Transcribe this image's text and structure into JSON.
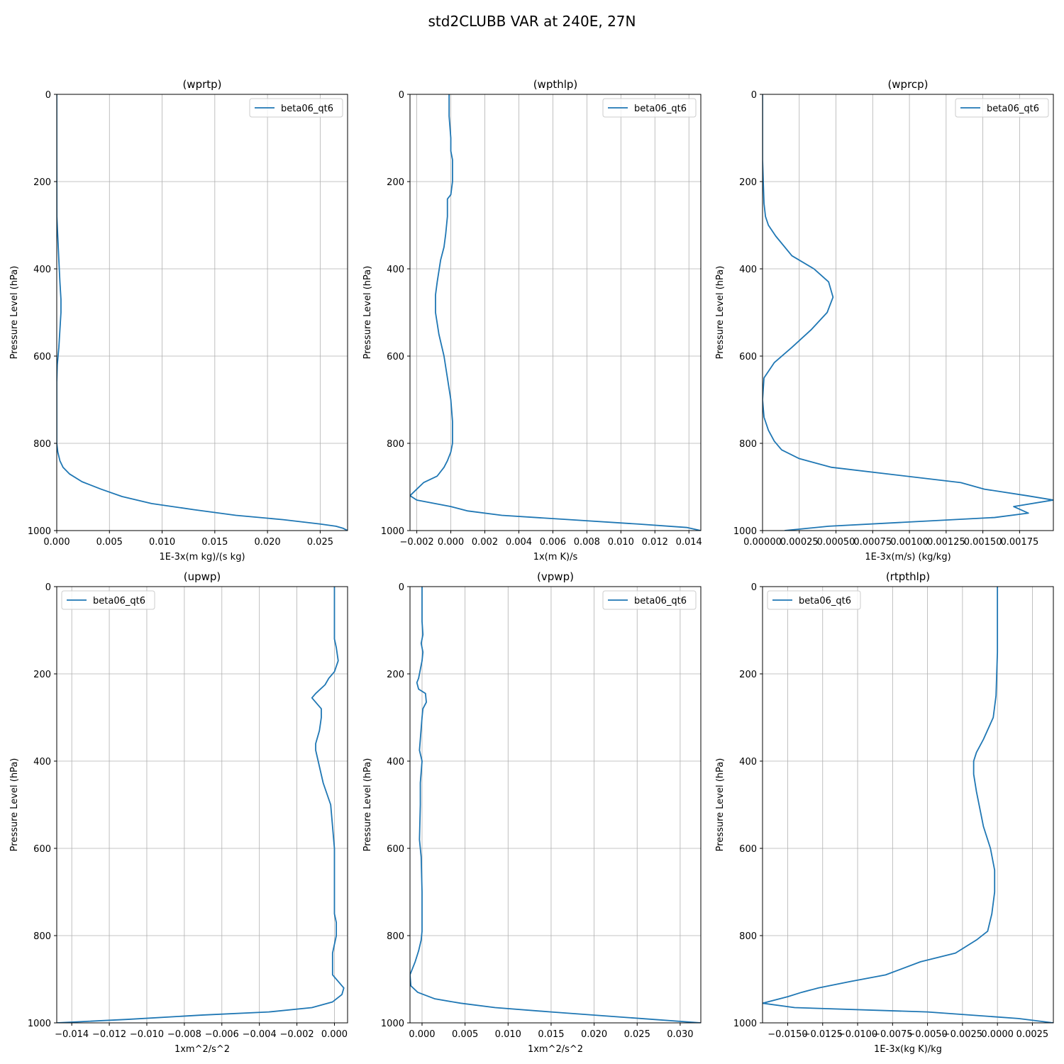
{
  "figure": {
    "title": "std2CLUBB VAR at 240E, 27N",
    "colors": {
      "series": "#1f77b4",
      "grid": "#b0b0b0",
      "frame": "#000000"
    }
  },
  "chart_data": [
    {
      "type": "line",
      "title": "(wprtp)",
      "xlabel": "1E-3x(m kg)/(s kg)",
      "ylabel": "Pressure Level (hPa)",
      "xlim": [
        0,
        0.0276
      ],
      "ylim": [
        1000,
        0
      ],
      "xticks": [
        0,
        0.005,
        0.01,
        0.015,
        0.02,
        0.025
      ],
      "xtick_labels": [
        "0.000",
        "0.005",
        "0.010",
        "0.015",
        "0.020",
        "0.025"
      ],
      "yticks": [
        0,
        200,
        400,
        600,
        800,
        1000
      ],
      "ytick_labels": [
        "0",
        "200",
        "400",
        "600",
        "800",
        "1000"
      ],
      "grid": true,
      "legend_loc": "upper-right",
      "series": [
        {
          "name": "beta06_qt6",
          "x": [
            0,
            0,
            1e-05,
            0.0002,
            0.0003,
            0.0004,
            0.0004,
            0.0003,
            0.0002,
            5e-05,
            0,
            0,
            0,
            0.0001,
            0.0003,
            0.0006,
            0.0012,
            0.0024,
            0.0042,
            0.0062,
            0.009,
            0.013,
            0.017,
            0.0215,
            0.025,
            0.0265,
            0.0272,
            0.0276
          ],
          "y": [
            0,
            150,
            280,
            380,
            430,
            470,
            500,
            540,
            580,
            620,
            660,
            760,
            800,
            820,
            840,
            855,
            870,
            888,
            905,
            922,
            938,
            952,
            965,
            975,
            985,
            990,
            995,
            1000
          ]
        }
      ]
    },
    {
      "type": "line",
      "title": "(wpthlp)",
      "xlabel": "1x(m K)/s",
      "ylabel": "Pressure Level (hPa)",
      "xlim": [
        -0.0024,
        0.0147
      ],
      "ylim": [
        1000,
        0
      ],
      "xticks": [
        -0.002,
        0,
        0.002,
        0.004,
        0.006,
        0.008,
        0.01,
        0.012,
        0.014
      ],
      "xtick_labels": [
        "−0.002",
        "0.000",
        "0.002",
        "0.004",
        "0.006",
        "0.008",
        "0.010",
        "0.012",
        "0.014"
      ],
      "yticks": [
        0,
        200,
        400,
        600,
        800,
        1000
      ],
      "ytick_labels": [
        "0",
        "200",
        "400",
        "600",
        "800",
        "1000"
      ],
      "grid": true,
      "legend_loc": "upper-right",
      "series": [
        {
          "name": "beta06_qt6",
          "x": [
            -0.0001,
            -0.0001,
            0.0,
            0.0,
            0.0001,
            0.0001,
            0.0,
            -0.0002,
            -0.0002,
            -0.0003,
            -0.0004,
            -0.0006,
            -0.0008,
            -0.0009,
            -0.0009,
            -0.0007,
            -0.0004,
            -0.0002,
            0.0,
            0.0001,
            0.0001,
            0.0001,
            0.0,
            -0.0002,
            -0.0004,
            -0.0008,
            -0.0016,
            -0.002,
            -0.0024,
            -0.002,
            0.0,
            0.001,
            0.003,
            0.007,
            0.011,
            0.0139,
            0.0147
          ],
          "y": [
            0,
            50,
            100,
            130,
            150,
            200,
            230,
            240,
            280,
            320,
            350,
            380,
            430,
            460,
            500,
            550,
            600,
            650,
            700,
            750,
            780,
            800,
            820,
            840,
            855,
            875,
            890,
            905,
            920,
            930,
            945,
            955,
            965,
            975,
            985,
            993,
            1000
          ]
        }
      ]
    },
    {
      "type": "line",
      "title": "(wprcp)",
      "xlabel": "1E-3x(m/s) (kg/kg)",
      "ylabel": "Pressure Level (hPa)",
      "xlim": [
        0,
        0.00198
      ],
      "ylim": [
        1000,
        0
      ],
      "xticks": [
        0,
        0.00025,
        0.0005,
        0.00075,
        0.001,
        0.00125,
        0.0015,
        0.00175
      ],
      "xtick_labels": [
        "0.00000",
        "0.00025",
        "0.00050",
        "0.00075",
        "0.00100",
        "0.00125",
        "0.00150",
        "0.00175"
      ],
      "yticks": [
        0,
        200,
        400,
        600,
        800,
        1000
      ],
      "ytick_labels": [
        "0",
        "200",
        "400",
        "600",
        "800",
        "1000"
      ],
      "grid": true,
      "legend_loc": "upper-right",
      "series": [
        {
          "name": "beta06_qt6",
          "x": [
            0,
            0,
            1e-05,
            2e-05,
            4e-05,
            9e-05,
            0.0002,
            0.00035,
            0.00045,
            0.00048,
            0.00044,
            0.00033,
            0.0002,
            8e-05,
            1e-05,
            0,
            1e-05,
            4e-05,
            8e-05,
            0.00013,
            0.00025,
            0.00047,
            0.00135,
            0.00151,
            0.0018,
            0.00198,
            0.00171,
            0.00181,
            0.00158,
            0.00045,
            0.00015
          ],
          "y": [
            0,
            150,
            250,
            280,
            300,
            325,
            370,
            400,
            430,
            465,
            500,
            540,
            580,
            615,
            650,
            700,
            740,
            770,
            795,
            815,
            835,
            855,
            890,
            905,
            920,
            930,
            945,
            960,
            970,
            990,
            1000
          ]
        }
      ]
    },
    {
      "type": "line",
      "title": "(upwp)",
      "xlabel": "1xm^2/s^2",
      "ylabel": "Pressure Level (hPa)",
      "xlim": [
        -0.0148,
        0.0007
      ],
      "ylim": [
        1000,
        0
      ],
      "xticks": [
        -0.014,
        -0.012,
        -0.01,
        -0.008,
        -0.006,
        -0.004,
        -0.002,
        0
      ],
      "xtick_labels": [
        "−0.014",
        "−0.012",
        "−0.010",
        "−0.008",
        "−0.006",
        "−0.004",
        "−0.002",
        "0.000"
      ],
      "yticks": [
        0,
        200,
        400,
        600,
        800,
        1000
      ],
      "ytick_labels": [
        "0",
        "200",
        "400",
        "600",
        "800",
        "1000"
      ],
      "grid": true,
      "legend_loc": "upper-left",
      "series": [
        {
          "name": "beta06_qt6",
          "x": [
            0.0,
            0.0,
            0.0,
            0.0001,
            0.0002,
            0.0,
            -0.0003,
            -0.0005,
            -0.001,
            -0.0012,
            -0.0007,
            -0.0007,
            -0.0008,
            -0.001,
            -0.001,
            -0.0006,
            -0.0002,
            -0.0001,
            0.0,
            0.0,
            0.0,
            0.0001,
            0.0001,
            -0.0001,
            -0.0001,
            -0.0001,
            0.0002,
            0.0005,
            0.0004,
            -0.0001,
            -0.0012,
            -0.0035,
            -0.007,
            -0.011,
            -0.0148
          ],
          "y": [
            0,
            60,
            120,
            140,
            170,
            195,
            210,
            225,
            245,
            255,
            280,
            300,
            330,
            360,
            375,
            450,
            500,
            550,
            600,
            700,
            750,
            770,
            800,
            840,
            870,
            890,
            905,
            920,
            935,
            952,
            965,
            975,
            982,
            992,
            1000
          ]
        }
      ]
    },
    {
      "type": "line",
      "title": "(vpwp)",
      "xlabel": "1xm^2/s^2",
      "ylabel": "Pressure Level (hPa)",
      "xlim": [
        -0.0014,
        0.0324
      ],
      "ylim": [
        1000,
        0
      ],
      "xticks": [
        0,
        0.005,
        0.01,
        0.015,
        0.02,
        0.025,
        0.03
      ],
      "xtick_labels": [
        "0.000",
        "0.005",
        "0.010",
        "0.015",
        "0.020",
        "0.025",
        "0.030"
      ],
      "yticks": [
        0,
        200,
        400,
        600,
        800,
        1000
      ],
      "ytick_labels": [
        "0",
        "200",
        "400",
        "600",
        "800",
        "1000"
      ],
      "grid": true,
      "legend_loc": "upper-right",
      "series": [
        {
          "name": "beta06_qt6",
          "x": [
            0,
            0,
            0.0001,
            -0.0001,
            0.0001,
            0.0,
            -0.0002,
            -0.0004,
            -0.0006,
            -0.0004,
            0.0004,
            0.0005,
            0.0001,
            0.0,
            -0.0002,
            -0.0003,
            0.0,
            -0.0002,
            -0.0002,
            -0.0003,
            -0.0001,
            0.0,
            0.0,
            -0.0001,
            -0.0004,
            -0.0008,
            -0.0014,
            -0.0013,
            -0.0005,
            0.0015,
            0.0045,
            0.0085,
            0.015,
            0.024,
            0.0324
          ],
          "y": [
            0,
            80,
            110,
            130,
            150,
            170,
            190,
            210,
            220,
            235,
            245,
            265,
            280,
            300,
            350,
            375,
            400,
            450,
            500,
            580,
            620,
            700,
            790,
            810,
            835,
            860,
            890,
            915,
            930,
            945,
            955,
            965,
            975,
            988,
            1000
          ]
        }
      ]
    },
    {
      "type": "line",
      "title": "(rtpthlp)",
      "xlabel": "1E-3x(kg K)/kg",
      "ylabel": "Pressure Level (hPa)",
      "xlim": [
        -0.0168,
        0.004
      ],
      "ylim": [
        1000,
        0
      ],
      "xticks": [
        -0.015,
        -0.0125,
        -0.01,
        -0.0075,
        -0.005,
        -0.0025,
        0,
        0.0025
      ],
      "xtick_labels": [
        "−0.0150",
        "−0.0125",
        "−0.0100",
        "−0.0075",
        "−0.0050",
        "−0.0025",
        "0.0000",
        "0.0025"
      ],
      "yticks": [
        0,
        200,
        400,
        600,
        800,
        1000
      ],
      "ytick_labels": [
        "0",
        "200",
        "400",
        "600",
        "800",
        "1000"
      ],
      "grid": true,
      "legend_loc": "upper-left",
      "series": [
        {
          "name": "beta06_qt6",
          "x": [
            0,
            0,
            -0.0001,
            -0.0003,
            -0.001,
            -0.0015,
            -0.0017,
            -0.0017,
            -0.0015,
            -0.001,
            -0.0005,
            -0.0002,
            -0.0002,
            -0.0004,
            -0.0007,
            -0.0015,
            -0.003,
            -0.0055,
            -0.008,
            -0.0105,
            -0.0128,
            -0.014,
            -0.015,
            -0.0168,
            -0.0145,
            -0.005,
            0.0015,
            0.004
          ],
          "y": [
            0,
            150,
            250,
            300,
            350,
            380,
            400,
            430,
            470,
            550,
            600,
            650,
            700,
            750,
            790,
            810,
            840,
            860,
            890,
            905,
            920,
            930,
            940,
            955,
            965,
            975,
            990,
            1000
          ]
        }
      ]
    }
  ]
}
